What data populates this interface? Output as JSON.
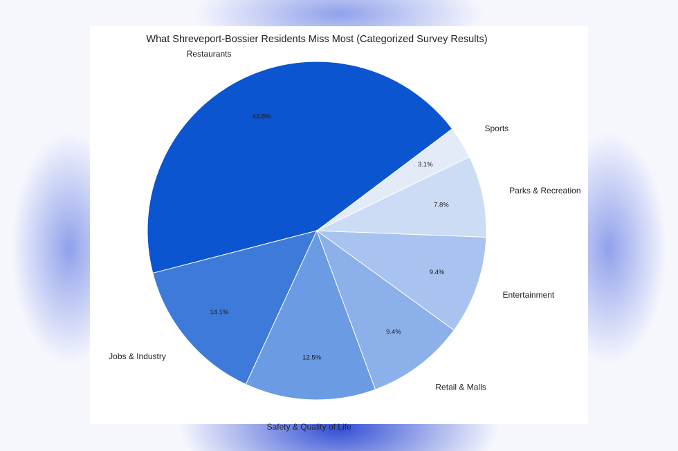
{
  "chart_data": {
    "type": "pie",
    "title": "What Shreveport-Bossier Residents Miss Most (Categorized Survey Results)",
    "slices": [
      {
        "label": "Restaurants",
        "value": 43.8,
        "pct_label": "43.8%",
        "color": "#0b55d0"
      },
      {
        "label": "Jobs & Industry",
        "value": 14.1,
        "pct_label": "14.1%",
        "color": "#3d7ad9"
      },
      {
        "label": "Safety & Quality of Life",
        "value": 12.5,
        "pct_label": "12.5%",
        "color": "#6a9be3"
      },
      {
        "label": "Retail & Malls",
        "value": 9.4,
        "pct_label": "9.4%",
        "color": "#8cb0e9"
      },
      {
        "label": "Entertainment",
        "value": 9.4,
        "pct_label": "9.4%",
        "color": "#a8c3ef"
      },
      {
        "label": "Parks & Recreation",
        "value": 7.8,
        "pct_label": "7.8%",
        "color": "#cddcf5"
      },
      {
        "label": "Sports",
        "value": 3.1,
        "pct_label": "3.1%",
        "color": "#e3ebf9"
      }
    ],
    "start_angle_deg": 37,
    "direction": "counterclockwise",
    "legend": "none",
    "grid": false
  }
}
